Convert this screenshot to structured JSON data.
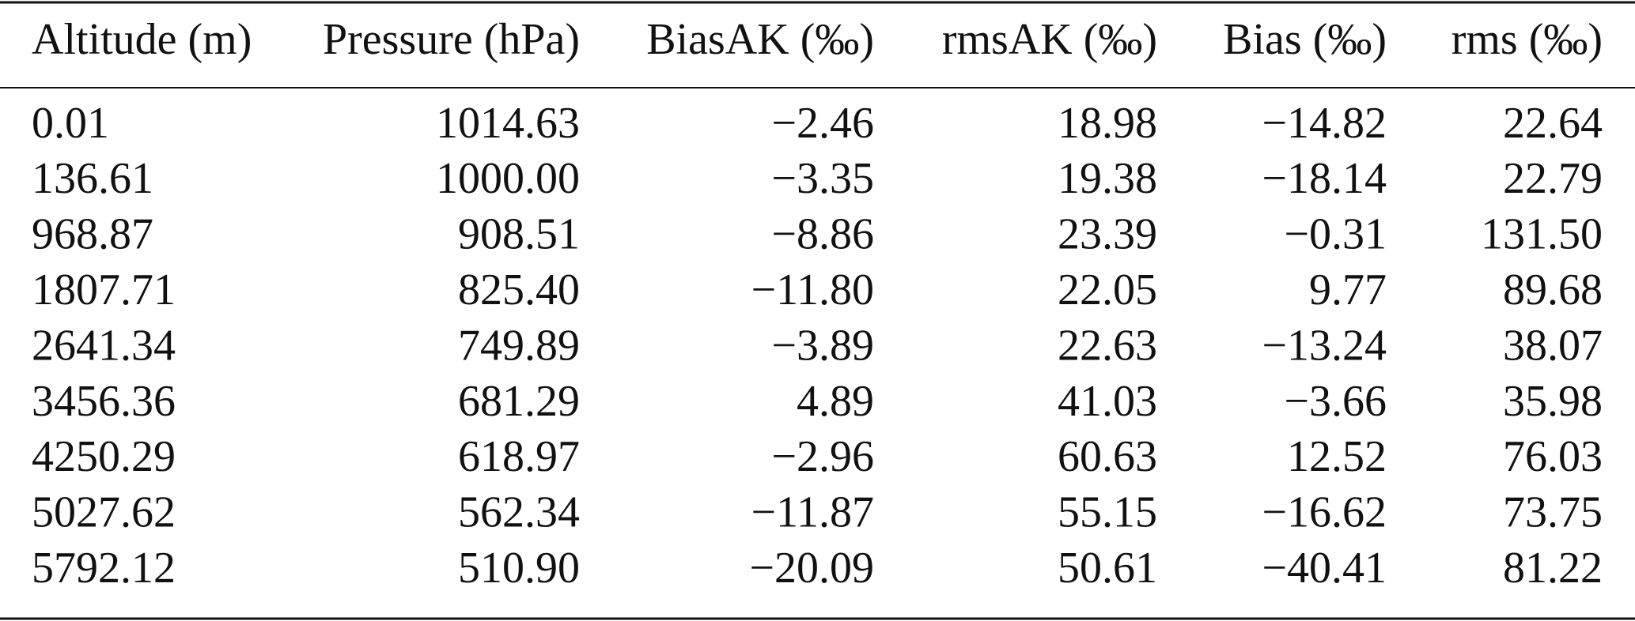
{
  "table": {
    "headers": [
      "Altitude (m)",
      "Pressure (hPa)",
      "BiasAK (‰)",
      "rmsAK (‰)",
      "Bias (‰)",
      "rms (‰)"
    ],
    "rows": [
      [
        "0.01",
        "1014.63",
        "−2.46",
        "18.98",
        "−14.82",
        "22.64"
      ],
      [
        "136.61",
        "1000.00",
        "−3.35",
        "19.38",
        "−18.14",
        "22.79"
      ],
      [
        "968.87",
        "908.51",
        "−8.86",
        "23.39",
        "−0.31",
        "131.50"
      ],
      [
        "1807.71",
        "825.40",
        "−11.80",
        "22.05",
        "9.77",
        "89.68"
      ],
      [
        "2641.34",
        "749.89",
        "−3.89",
        "22.63",
        "−13.24",
        "38.07"
      ],
      [
        "3456.36",
        "681.29",
        "4.89",
        "41.03",
        "−3.66",
        "35.98"
      ],
      [
        "4250.29",
        "618.97",
        "−2.96",
        "60.63",
        "12.52",
        "76.03"
      ],
      [
        "5027.62",
        "562.34",
        "−11.87",
        "55.15",
        "−16.62",
        "73.75"
      ],
      [
        "5792.12",
        "510.90",
        "−20.09",
        "50.61",
        "−40.41",
        "81.22"
      ]
    ]
  }
}
